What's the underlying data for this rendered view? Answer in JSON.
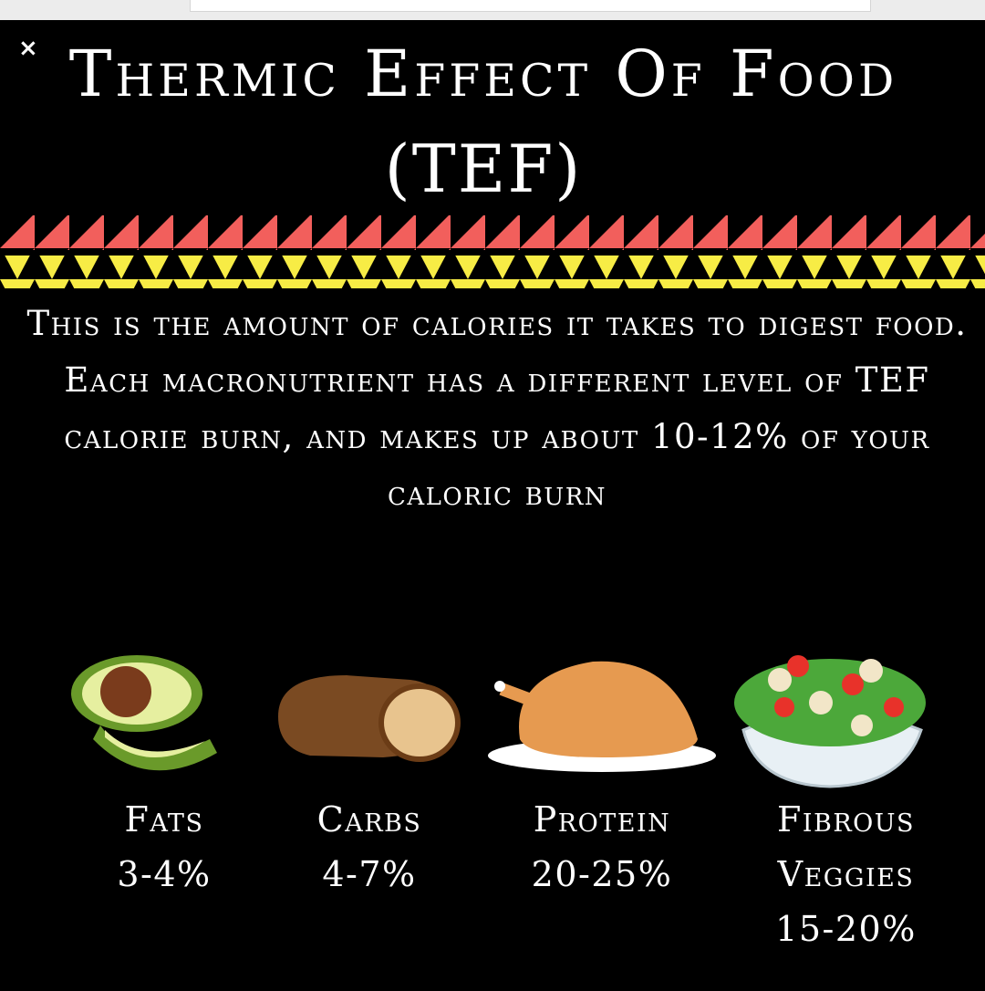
{
  "header": {
    "title": "Thermic Effect Of Food",
    "subtitle": "(TEF)"
  },
  "description": "This is the amount of calories it takes to digest food. Each macronutrient has a different level of TEF calorie burn, and makes up about 10-12% of your caloric burn",
  "items": [
    {
      "name": "Fats",
      "value": "3-4%"
    },
    {
      "name": "Carbs",
      "value": "4-7%"
    },
    {
      "name": "Protein",
      "value": "20-25%"
    },
    {
      "name": "Fibrous Veggies",
      "value": "15-20%"
    }
  ]
}
